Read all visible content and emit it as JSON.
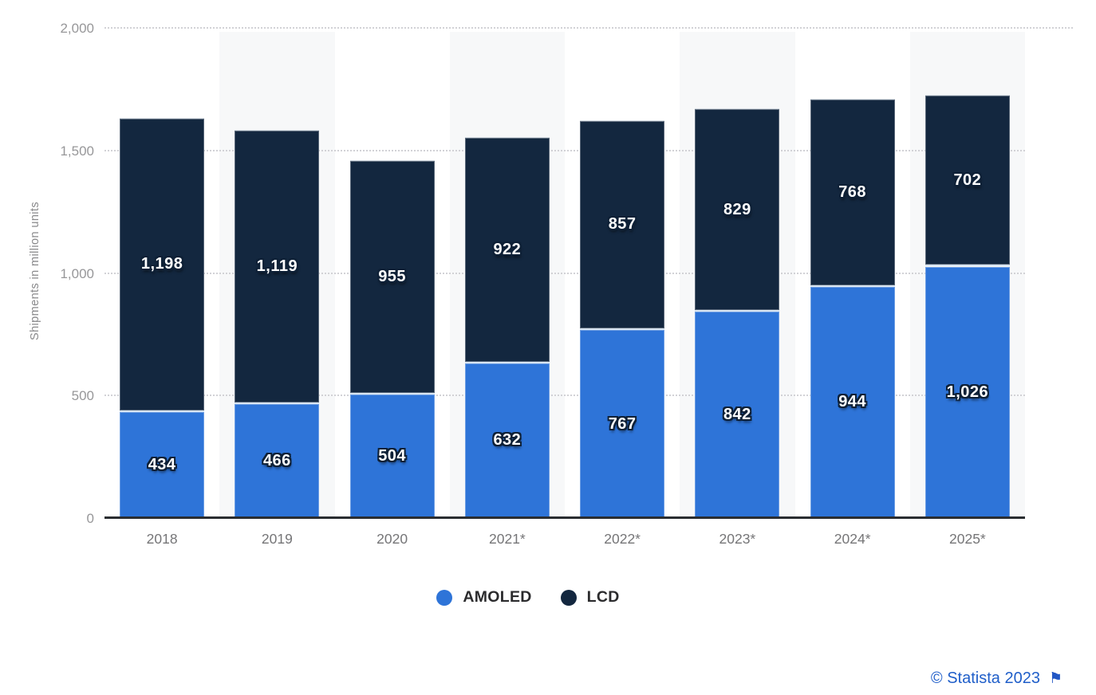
{
  "chart_data": {
    "type": "bar",
    "stacked": true,
    "title": "",
    "xlabel": "",
    "ylabel": "Shipments in million units",
    "categories": [
      "2018",
      "2019",
      "2020",
      "2021*",
      "2022*",
      "2023*",
      "2024*",
      "2025*"
    ],
    "series": [
      {
        "name": "AMOLED",
        "color": "#2e74d8",
        "values": [
          434,
          466,
          504,
          632,
          767,
          842,
          944,
          1026
        ]
      },
      {
        "name": "LCD",
        "color": "#13273f",
        "values": [
          1198,
          1119,
          955,
          922,
          857,
          829,
          768,
          702
        ]
      }
    ],
    "ylim": [
      0,
      2000
    ],
    "y_ticks": [
      0,
      500,
      1000,
      1500,
      2000
    ],
    "grid": "horizontal-dotted",
    "legend_position": "bottom",
    "value_labels": "on-segments"
  },
  "footer": {
    "credit": "© Statista 2023",
    "flag_icon": "flag-icon"
  }
}
